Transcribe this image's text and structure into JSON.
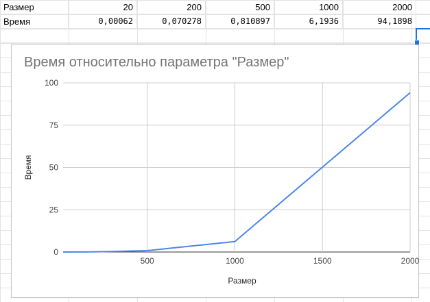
{
  "sheet": {
    "rows": [
      {
        "label": "Размер",
        "values": [
          "20",
          "200",
          "500",
          "1000",
          "2000"
        ]
      },
      {
        "label": "Время",
        "values": [
          "0,00062",
          "0,070278",
          "0,810897",
          "6,1936",
          "94,1898"
        ]
      }
    ]
  },
  "chart_data": {
    "type": "line",
    "title": "Время относительно параметра \"Размер\"",
    "xlabel": "Размер",
    "ylabel": "Время",
    "x": [
      20,
      200,
      500,
      1000,
      2000
    ],
    "series": [
      {
        "values": [
          0.00062,
          0.070278,
          0.810897,
          6.1936,
          94.1898
        ],
        "color": "#4a86e8"
      }
    ],
    "xlim": [
      20,
      2000
    ],
    "ylim": [
      0,
      100
    ],
    "xticks": [
      "500",
      "1000",
      "1500",
      "2000"
    ],
    "yticks": [
      "0",
      "25",
      "50",
      "75",
      "100"
    ],
    "grid": true,
    "legend": "none"
  }
}
